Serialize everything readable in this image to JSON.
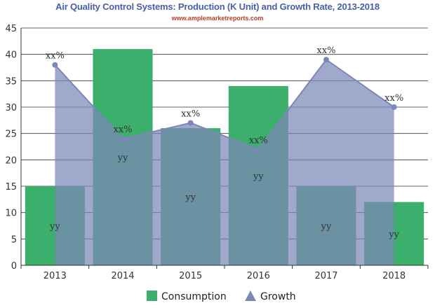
{
  "chart_data": {
    "type": "bar",
    "title": "Air Quality Control Systems: Production (K Unit) and Growth Rate, 2013-2018",
    "subtitle": "www.amplemarketreports.com",
    "categories": [
      "2013",
      "2014",
      "2015",
      "2016",
      "2017",
      "2018"
    ],
    "ylim": [
      0,
      45
    ],
    "yticks": [
      0,
      5,
      10,
      15,
      20,
      25,
      30,
      35,
      40,
      45
    ],
    "grid": true,
    "legend_position": "bottom",
    "series": [
      {
        "name": "Consumption",
        "type": "bar",
        "color": "#3daf6c",
        "values": [
          15,
          41,
          26,
          34,
          15,
          12
        ],
        "labels": [
          "yy",
          "yy",
          "yy",
          "yy",
          "yy",
          "yy"
        ]
      },
      {
        "name": "Growth",
        "type": "area",
        "color": "#7b87b9",
        "values": [
          38,
          24,
          27,
          22,
          39,
          30
        ],
        "labels": [
          "xx%",
          "xx%",
          "xx%",
          "xx%",
          "xx%",
          "xx%"
        ]
      }
    ]
  }
}
